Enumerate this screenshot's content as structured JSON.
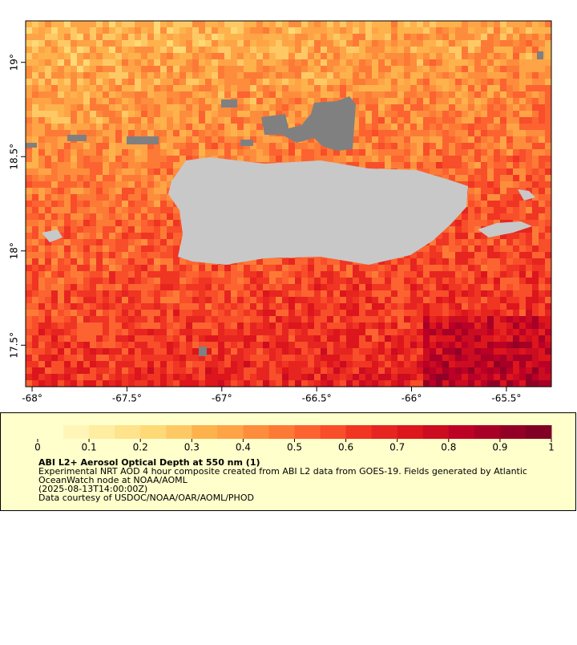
{
  "map": {
    "lon_range": [
      -68.034,
      -65.263
    ],
    "lat_range": [
      17.28,
      19.22
    ],
    "lon_ticks": [
      {
        "value": -68,
        "label": "-68°"
      },
      {
        "value": -67.5,
        "label": "-67.5°"
      },
      {
        "value": -67,
        "label": "-67°"
      },
      {
        "value": -66.5,
        "label": "-66.5°"
      },
      {
        "value": -66,
        "label": "-66°"
      },
      {
        "value": -65.5,
        "label": "-65.5°"
      }
    ],
    "lat_ticks": [
      {
        "value": 19,
        "label": "19°"
      },
      {
        "value": 18.5,
        "label": "18.5°"
      },
      {
        "value": 18,
        "label": "18°"
      },
      {
        "value": 17.5,
        "label": "17.5°"
      }
    ]
  },
  "colorbar": {
    "range": [
      0,
      1
    ],
    "ticks": [
      0,
      0.1,
      0.2,
      0.3,
      0.4,
      0.5,
      0.6,
      0.7,
      0.8,
      0.9,
      1
    ],
    "colors": [
      "#ffffcc",
      "#fff5b8",
      "#ffeda0",
      "#fee38c",
      "#fed976",
      "#fec965",
      "#feb24c",
      "#fea446",
      "#fd8d3c",
      "#fd7a36",
      "#fc6330",
      "#f84e2a",
      "#f03523",
      "#e62520",
      "#dc161c",
      "#cb0c21",
      "#bd0026",
      "#a80026",
      "#930026",
      "#800026"
    ]
  },
  "caption": {
    "title": "ABI L2+ Aerosol Optical Depth at 550 nm (1)",
    "lines": [
      "Experimental NRT AOD 4 hour composite created from ABI L2 data from GOES-19. Fields generated by Atlantic",
      "OceanWatch node at NOAA/AOML",
      "(2025-08-13T14:00:00Z)",
      "Data courtesy of USDOC/NOAA/OAR/AOML/PHOD"
    ]
  }
}
